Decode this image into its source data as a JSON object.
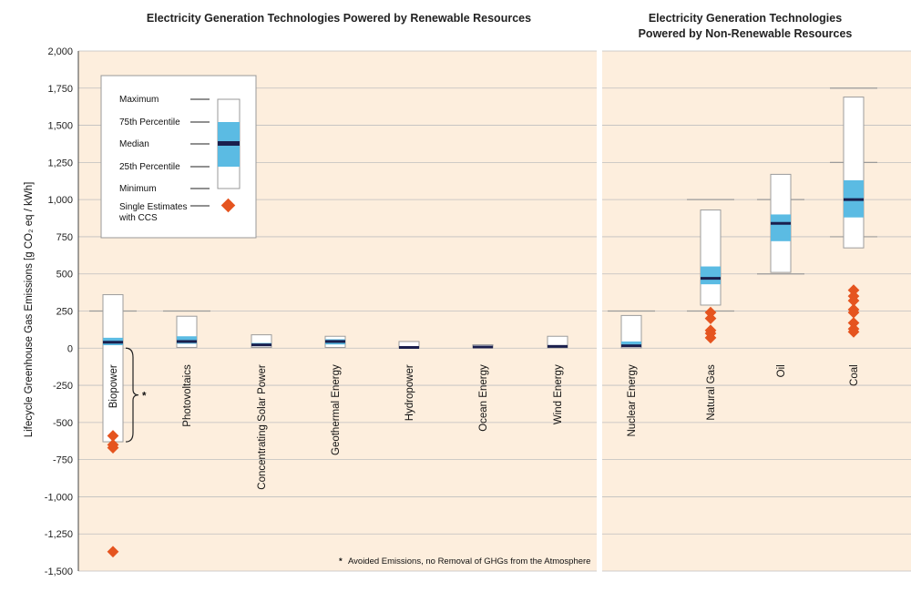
{
  "chart_data": {
    "type": "box",
    "panels": [
      {
        "title": "Electricity Generation Technologies Powered by Renewable Resources",
        "categories": [
          "Biopower",
          "Photovoltaics",
          "Concentrating Solar Power",
          "Geothermal Energy",
          "Hydropower",
          "Ocean Energy",
          "Wind Energy"
        ]
      },
      {
        "title_lines": [
          "Electricity Generation Technologies",
          "Powered by Non-Renewable Resources"
        ],
        "categories": [
          "Nuclear Energy",
          "Natural Gas",
          "Oil",
          "Coal"
        ]
      }
    ],
    "ylabel": "Lifecycle Greenhouse Gas Emissions [g CO₂ eq / kWh]",
    "ylim": [
      -1500,
      2000
    ],
    "yticks": [
      "2,000",
      "1,750",
      "1,500",
      "1,250",
      "1,000",
      "750",
      "500",
      "250",
      "0",
      "-250",
      "-500",
      "-750",
      "-1,000",
      "-1,250",
      "-1,500"
    ],
    "ytick_values": [
      2000,
      1750,
      1500,
      1250,
      1000,
      750,
      500,
      250,
      0,
      -250,
      -500,
      -750,
      -1000,
      -1250,
      -1500
    ],
    "boxes": [
      {
        "category": "Biopower",
        "min": -630,
        "p25": 20,
        "median": 40,
        "p75": 70,
        "max": 360
      },
      {
        "category": "Photovoltaics",
        "min": 5,
        "p25": 30,
        "median": 45,
        "p75": 80,
        "max": 215
      },
      {
        "category": "Concentrating Solar Power",
        "min": 5,
        "p25": 15,
        "median": 22,
        "p75": 35,
        "max": 90
      },
      {
        "category": "Geothermal Energy",
        "min": 5,
        "p25": 25,
        "median": 45,
        "p75": 60,
        "max": 80
      },
      {
        "category": "Hydropower",
        "min": 0,
        "p25": 5,
        "median": 5,
        "p75": 10,
        "max": 45
      },
      {
        "category": "Ocean Energy",
        "min": 2,
        "p25": 5,
        "median": 8,
        "p75": 10,
        "max": 23
      },
      {
        "category": "Wind Energy",
        "min": 2,
        "p25": 8,
        "median": 12,
        "p75": 20,
        "max": 80
      },
      {
        "category": "Nuclear Energy",
        "min": 1,
        "p25": 10,
        "median": 16,
        "p75": 45,
        "max": 220
      },
      {
        "category": "Natural Gas",
        "min": 290,
        "p25": 430,
        "median": 470,
        "p75": 550,
        "max": 930
      },
      {
        "category": "Oil",
        "min": 510,
        "p25": 720,
        "median": 840,
        "p75": 900,
        "max": 1170
      },
      {
        "category": "Coal",
        "min": 675,
        "p25": 880,
        "median": 1000,
        "p75": 1130,
        "max": 1690
      }
    ],
    "ccs_estimates": [
      {
        "category": "Biopower",
        "values": [
          -590,
          -670,
          -650,
          -1370
        ]
      },
      {
        "category": "Natural Gas",
        "values": [
          240,
          200,
          120,
          100,
          70
        ]
      },
      {
        "category": "Coal",
        "values": [
          390,
          350,
          320,
          260,
          240,
          170,
          130,
          110
        ]
      }
    ],
    "reference_ticks": [
      {
        "category": "Biopower",
        "values": [
          250
        ]
      },
      {
        "category": "Photovoltaics",
        "values": [
          250
        ]
      },
      {
        "category": "Nuclear Energy",
        "values": [
          250
        ]
      },
      {
        "category": "Natural Gas",
        "values": [
          1000,
          250
        ]
      },
      {
        "category": "Oil",
        "values": [
          1000,
          500
        ]
      },
      {
        "category": "Coal",
        "values": [
          1750,
          1250,
          750
        ]
      }
    ],
    "bracket": {
      "category": "Biopower",
      "from": 0,
      "to": -630,
      "label": "*"
    },
    "legend": {
      "placement": "top-left",
      "items": [
        "Maximum",
        "75th Percentile",
        "Median",
        "25th Percentile",
        "Minimum",
        "Single Estimates",
        "with CCS"
      ]
    },
    "footnote": "Avoided Emissions, no Removal of GHGs from the Atmosphere",
    "footnote_marker": "*",
    "grid": true,
    "colors": {
      "background": "#fdeedd",
      "box_fill": "#ffffff",
      "iqr_fill": "#5bbbe3",
      "median": "#1a1f4d",
      "ccs_marker": "#e5541f",
      "grid": "#bfbfbf"
    }
  }
}
